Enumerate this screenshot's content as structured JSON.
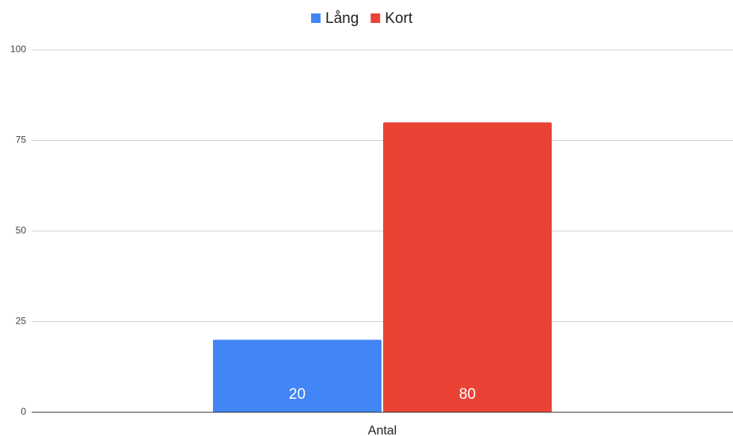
{
  "chart_data": {
    "type": "bar",
    "legend": "top",
    "categories": [
      "Antal"
    ],
    "series": [
      {
        "name": "Lång",
        "color": "#4285f4",
        "values": [
          20
        ]
      },
      {
        "name": "Kort",
        "color": "#ea4335",
        "values": [
          80
        ]
      }
    ],
    "ylim": [
      0,
      100
    ],
    "yticks": [
      0,
      25,
      50,
      75,
      100
    ],
    "grid": true
  }
}
